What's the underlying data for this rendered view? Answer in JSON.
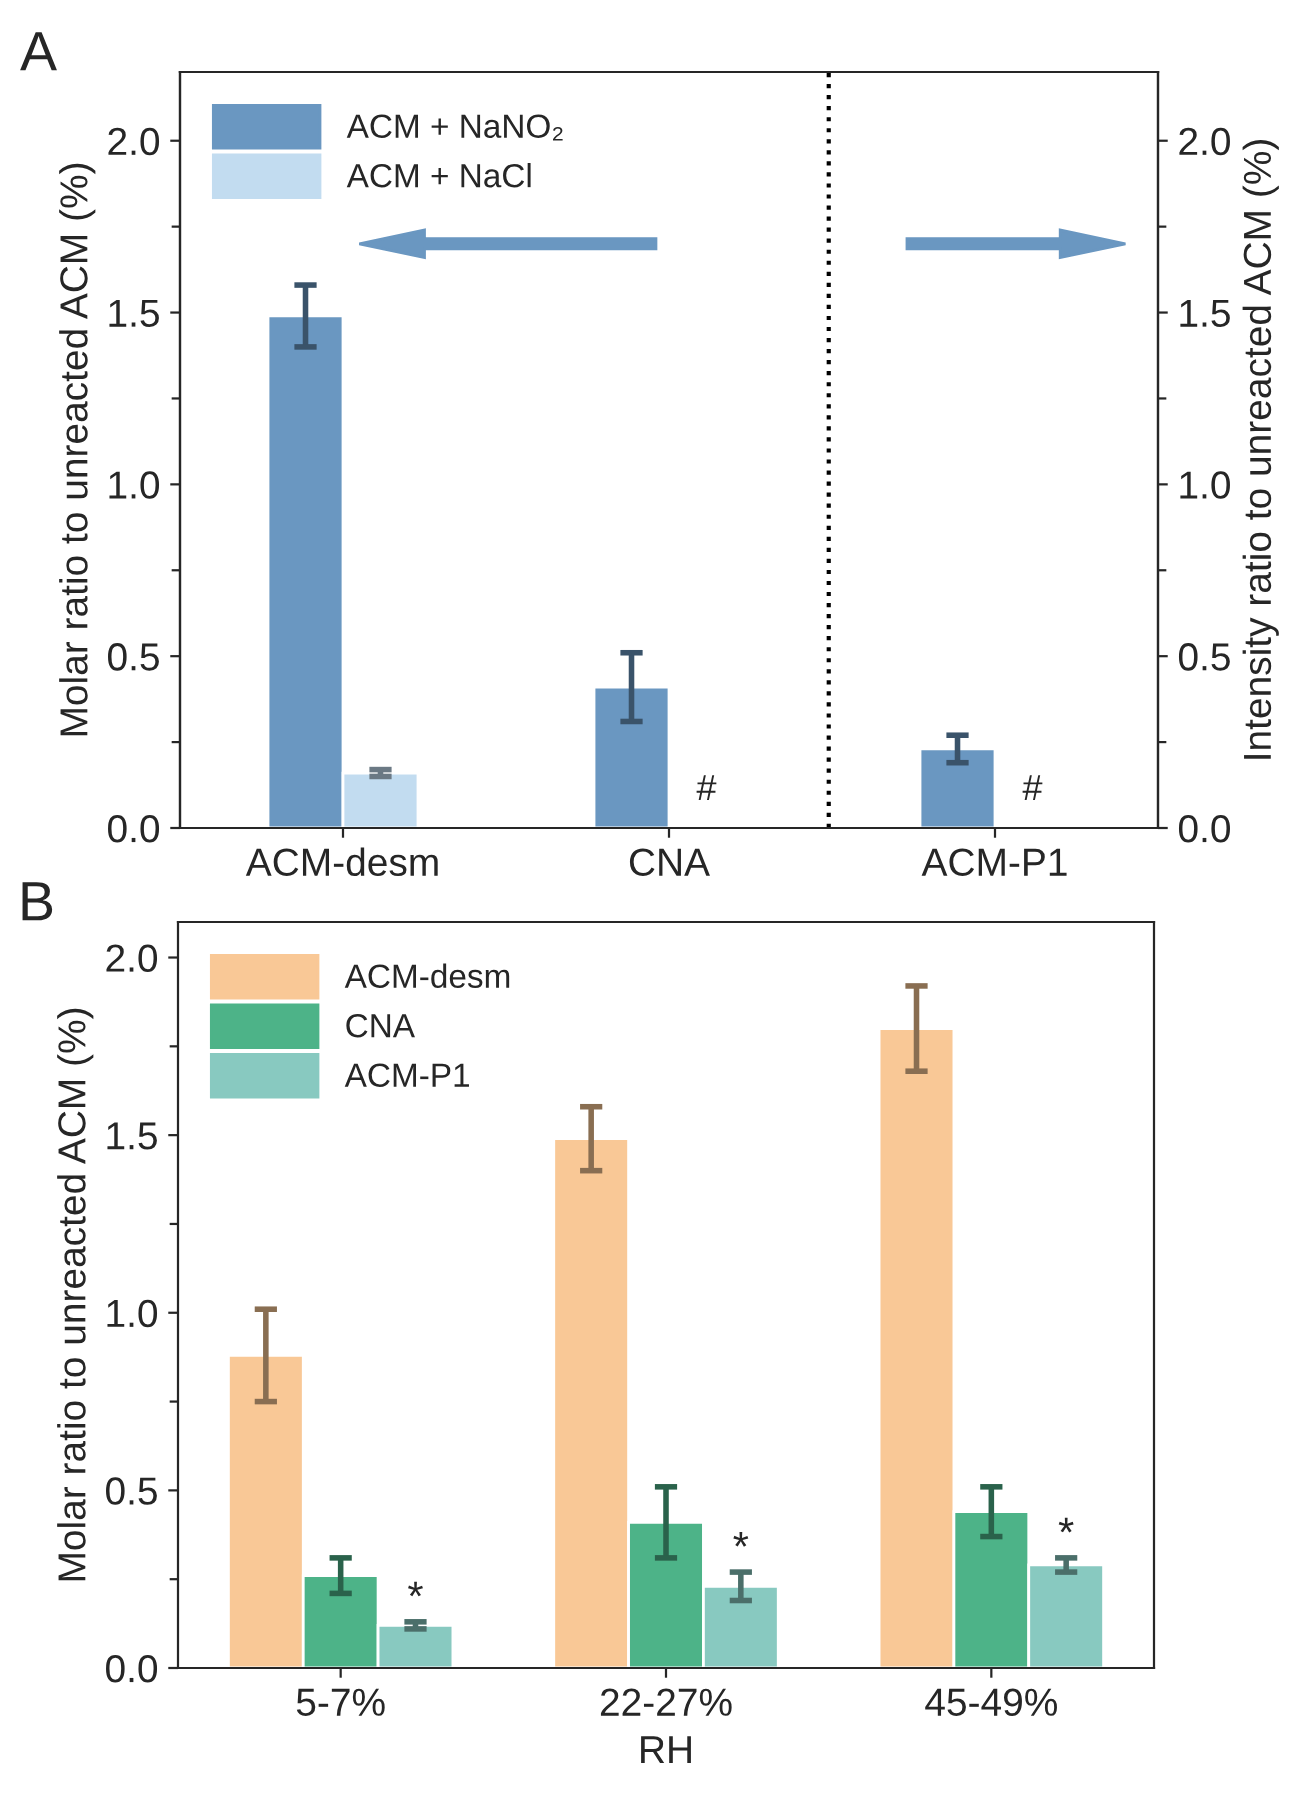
{
  "chart_data": [
    {
      "type": "bar",
      "title": "A",
      "ylabel": "Molar ratio to unreacted ACM (%)",
      "y2label": "Intensity ratio to unreacted ACM (%)",
      "categories": [
        "ACM-desm",
        "CNA",
        "ACM-P1"
      ],
      "series": [
        {
          "name": "ACM + NaNO₂",
          "color": "#6a97c1",
          "values": [
            1.49,
            0.41,
            null
          ],
          "errors": [
            0.09,
            0.1,
            null
          ]
        },
        {
          "name": "ACM + NaCl",
          "color": "#c2dcf0",
          "values": [
            0.16,
            null,
            null
          ],
          "errors": [
            0.01,
            null,
            null
          ]
        },
        {
          "color": "#6a97c1",
          "values": [
            null,
            null,
            0.23
          ],
          "errors": [
            null,
            null,
            0.04
          ],
          "axis": "y2"
        }
      ],
      "ylim": [
        0,
        2.2
      ],
      "yticks": [
        {
          "value": 0,
          "label": "0.0"
        },
        {
          "value": 0.25,
          "label": null
        },
        {
          "value": 0.5,
          "label": "0.5"
        },
        {
          "value": 0.75,
          "label": null
        },
        {
          "value": 1,
          "label": "1.0"
        },
        {
          "value": 1.25,
          "label": null
        },
        {
          "value": 1.5,
          "label": "1.5"
        },
        {
          "value": 1.75,
          "label": null
        },
        {
          "value": 2,
          "label": "2.0"
        }
      ],
      "y2lim": [
        0,
        2.2
      ],
      "y2ticks": [
        {
          "value": 0,
          "label": "0.0"
        },
        {
          "value": 0.25,
          "label": null
        },
        {
          "value": 0.5,
          "label": "0.5"
        },
        {
          "value": 0.75,
          "label": null
        },
        {
          "value": 1,
          "label": "1.0"
        },
        {
          "value": 1.25,
          "label": null
        },
        {
          "value": 1.5,
          "label": "1.5"
        },
        {
          "value": 1.75,
          "label": null
        },
        {
          "value": 2,
          "label": "2.0"
        }
      ],
      "annotations": [
        "#",
        "#"
      ],
      "legend": "top left",
      "grid": false
    },
    {
      "type": "bar",
      "title": "B",
      "xlabel": "RH",
      "ylabel": "Molar ratio to unreacted ACM (%)",
      "categories": [
        "5-7%",
        "22-27%",
        "45-49%"
      ],
      "series": [
        {
          "name": "ACM-desm",
          "color": "#f9c896",
          "values": [
            0.88,
            1.49,
            1.8
          ],
          "errors": [
            0.13,
            0.09,
            0.12
          ]
        },
        {
          "name": "CNA",
          "color": "#4db388",
          "values": [
            0.26,
            0.41,
            0.44
          ],
          "errors": [
            0.05,
            0.1,
            0.07
          ]
        },
        {
          "name": "ACM-P1",
          "color": "#88c9c0",
          "values": [
            0.12,
            0.23,
            0.29
          ],
          "errors": [
            0.01,
            0.04,
            0.02
          ]
        }
      ],
      "ylim": [
        0,
        2.1
      ],
      "yticks": [
        {
          "value": 0,
          "label": "0.0"
        },
        {
          "value": 0.25,
          "label": null
        },
        0.5,
        {
          "value": 0.75,
          "label": null
        },
        {
          "value": 1,
          "label": "1.0"
        },
        {
          "value": 1.25,
          "label": null
        },
        1.5,
        {
          "value": 1.75,
          "label": null
        },
        {
          "value": 2,
          "label": "2.0"
        }
      ],
      "annotations": [
        "*",
        "*",
        "*"
      ],
      "legend": "top left",
      "grid": false
    }
  ]
}
